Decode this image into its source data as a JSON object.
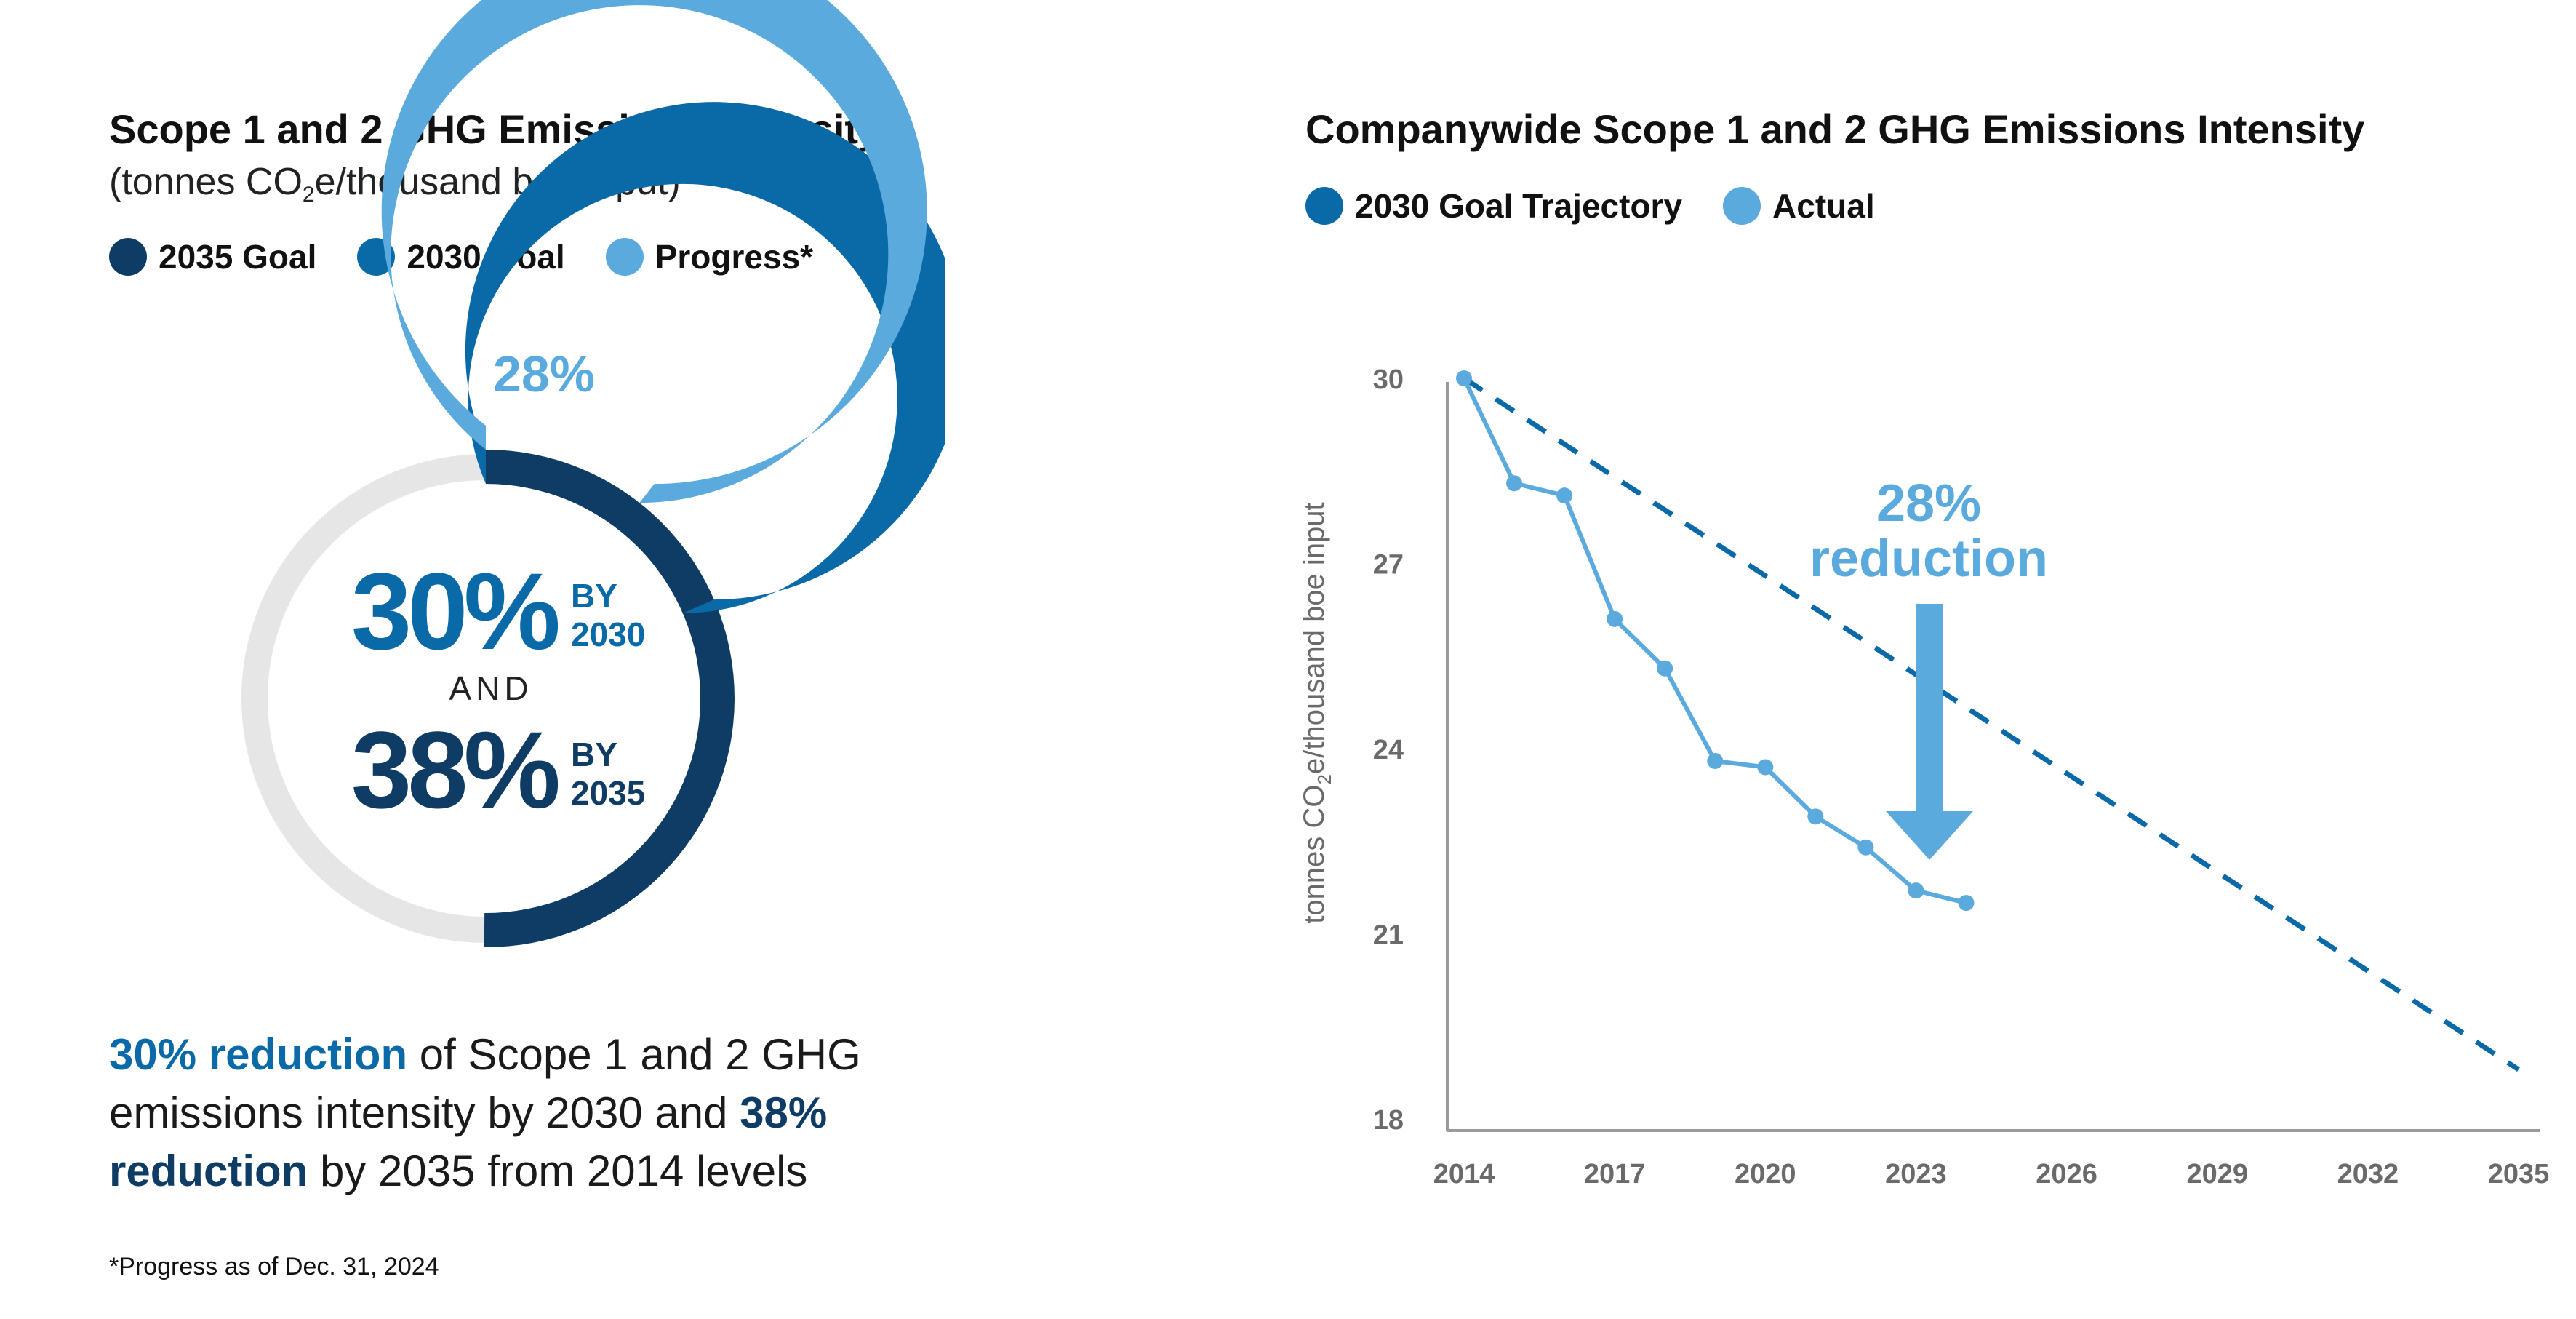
{
  "colors": {
    "goal_2035": "#0f3c64",
    "goal_2030": "#0a6aa8",
    "progress": "#5aaade",
    "track": "#e6e6e6",
    "axis": "#9a9a9a",
    "tick_text": "#6a6a6a"
  },
  "left": {
    "title": "Scope 1 and 2 GHG Emissions Intensity",
    "subtitle_pre": "(tonnes CO",
    "subtitle_sub": "2",
    "subtitle_post": "e/thousand boe input)",
    "legend": [
      {
        "label": "2035 Goal",
        "color": "#0f3c64"
      },
      {
        "label": "2030 Goal",
        "color": "#0a6aa8"
      },
      {
        "label": "Progress*",
        "color": "#5aaade"
      }
    ],
    "summary": {
      "bold1": "30% reduction",
      "text1": " of Scope 1 and 2 GHG emissions intensity by 2030 and ",
      "bold2": "38% reduction",
      "text2": " by 2035 from 2014 levels"
    },
    "footnote": "*Progress as of Dec. 31, 2024"
  },
  "right": {
    "title": "Companywide Scope 1 and 2 GHG Emissions Intensity",
    "legend": [
      {
        "label": "2030 Goal Trajectory",
        "color": "#0a6aa8"
      },
      {
        "label": "Actual",
        "color": "#5aaade"
      }
    ]
  },
  "chart_data": [
    {
      "type": "pie",
      "title": "Scope 1 and 2 GHG Emissions Intensity",
      "progress_percent": 28,
      "goal_2030_percent": 30,
      "goal_2035_percent": 38,
      "progress_label": "28%",
      "center": {
        "line1_value": "30%",
        "line1_top": "BY",
        "line1_bottom": "2030",
        "connector": "AND",
        "line2_value": "38%",
        "line2_top": "BY",
        "line2_bottom": "2035"
      }
    },
    {
      "type": "line",
      "title": "Companywide Scope 1 and 2 GHG Emissions Intensity",
      "xlabel": "",
      "ylabel_pre": "tonnes CO",
      "ylabel_sub": "2",
      "ylabel_post": "e/thousand boe input",
      "xlim": [
        2014,
        2035
      ],
      "ylim": [
        18,
        30
      ],
      "x_ticks": [
        "2014",
        "2017",
        "2020",
        "2023",
        "2026",
        "2029",
        "2032",
        "2035"
      ],
      "y_ticks": [
        "18",
        "21",
        "24",
        "27",
        "30"
      ],
      "grid": false,
      "legend_position": "top-left",
      "series": [
        {
          "name": "2030 Goal Trajectory",
          "style": "dashed",
          "color": "#0a6aa8",
          "x": [
            2014,
            2035
          ],
          "y": [
            30,
            18.8
          ]
        },
        {
          "name": "Actual",
          "style": "solid-markers",
          "color": "#5aaade",
          "x": [
            2014,
            2015,
            2016,
            2017,
            2018,
            2019,
            2020,
            2021,
            2022,
            2023,
            2024
          ],
          "y": [
            30,
            28.3,
            28.1,
            26.1,
            25.3,
            23.8,
            23.7,
            22.9,
            22.4,
            21.7,
            21.5
          ]
        }
      ],
      "annotation": {
        "line1": "28%",
        "line2": "reduction"
      }
    }
  ]
}
